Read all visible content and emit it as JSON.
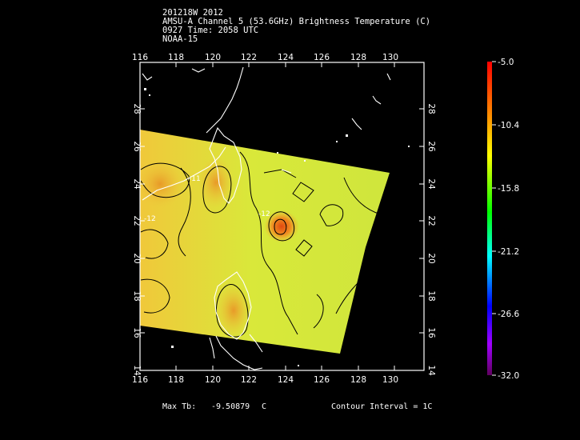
{
  "header": {
    "storm_id": "201218W 2012",
    "product": "AMSU-A Channel 5 (53.6GHz) Brightness Temperature (C)",
    "datetime": "0927 Time: 2058 UTC",
    "satellite": "NOAA-15"
  },
  "map": {
    "lon_ticks": [
      "116",
      "118",
      "120",
      "122",
      "124",
      "126",
      "128",
      "130"
    ],
    "lat_ticks": [
      "14",
      "16",
      "18",
      "20",
      "22",
      "24",
      "26",
      "28"
    ],
    "lon_range": [
      116,
      131.5
    ],
    "lat_range": [
      14,
      30.5
    ],
    "contour_labels": [
      "-11",
      "-12",
      "-12"
    ]
  },
  "colorbar": {
    "labels": [
      "-5.0",
      "-10.4",
      "-15.8",
      "-21.2",
      "-26.6",
      "-32.0"
    ],
    "colors": [
      "#ff0000",
      "#ff8c00",
      "#ffff00",
      "#00ff00",
      "#00ffff",
      "#0000ff",
      "#a000ff",
      "#600060"
    ]
  },
  "footer": {
    "max_label": "Max Tb:",
    "max_value": "-9.50879",
    "max_unit": "C",
    "contour_interval": "Contour Interval = 1C"
  }
}
